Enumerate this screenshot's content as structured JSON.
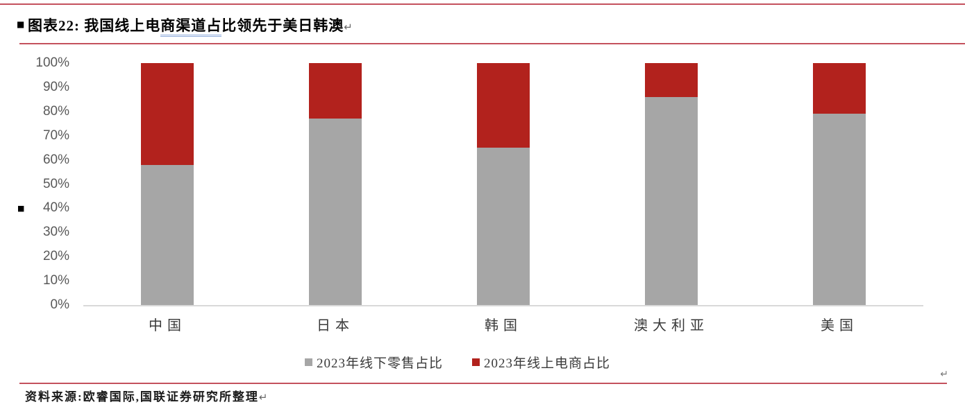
{
  "page": {
    "title": {
      "bullet": "■",
      "prefix": "图表22:",
      "number": "22",
      "seg1": " 我国线上电",
      "seg2_underlined": "商渠道占",
      "seg3": "比领先于美日韩澳",
      "return_mark": "↵"
    },
    "margin_bullet": "■",
    "right_return_mark": "↵",
    "footer": {
      "source": "资料来源:欧睿国际,国联证券研究所整理",
      "return_mark": "↵"
    }
  },
  "colors": {
    "offline_gray": "#A6A6A6",
    "online_red": "#B2221D",
    "rule_red": "#C4515D",
    "baseline_gray": "#D9D9D9",
    "axis_text": "#595959",
    "underline_blue": "#8EAADB"
  },
  "chart_data": {
    "type": "bar",
    "stacked": true,
    "percent_stacked": true,
    "title": "图表22:我国线上电商渠道占比领先于美日韩澳",
    "categories": [
      "中国",
      "日本",
      "韩国",
      "澳大利亚",
      "美国"
    ],
    "series": [
      {
        "name": "2023年线下零售占比",
        "color": "#A6A6A6",
        "values": [
          58,
          77,
          65,
          86,
          79
        ]
      },
      {
        "name": "2023年线上电商占比",
        "color": "#B2221D",
        "values": [
          42,
          23,
          35,
          14,
          21
        ]
      }
    ],
    "ylim": [
      0,
      100
    ],
    "yticks": [
      "100%",
      "90%",
      "80%",
      "70%",
      "60%",
      "50%",
      "40%",
      "30%",
      "20%",
      "10%",
      "0%"
    ],
    "grid": false,
    "legend_position": "bottom",
    "source_note": "资料来源:欧睿国际,国联证券研究所整理"
  }
}
